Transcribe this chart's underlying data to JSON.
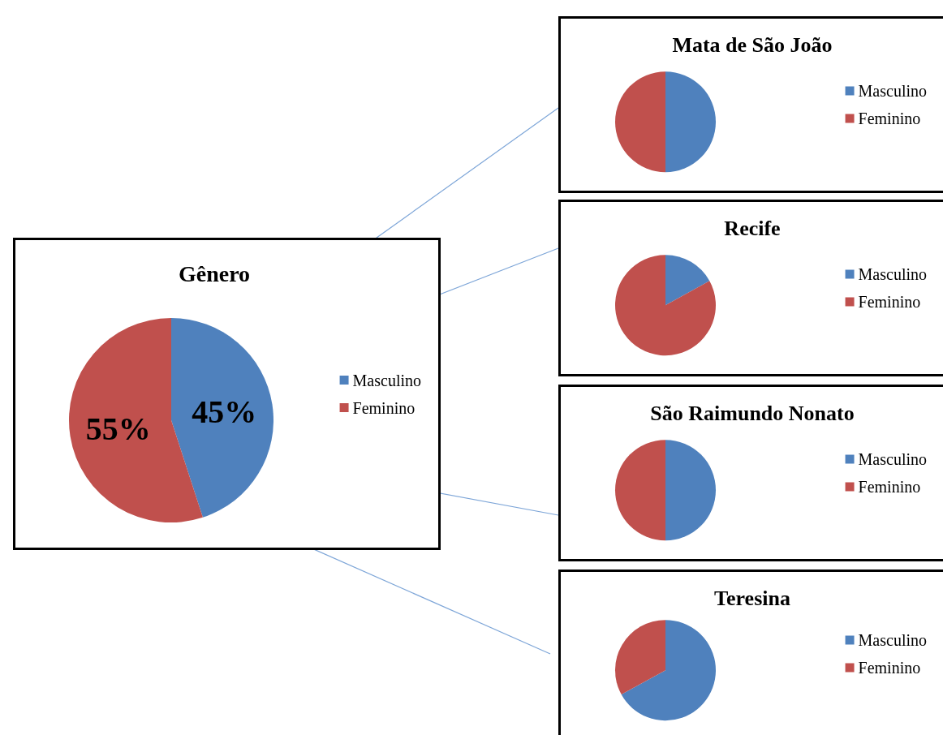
{
  "chart_data": [
    {
      "type": "pie",
      "title": "Gênero",
      "categories": [
        "Masculino",
        "Feminino"
      ],
      "values": [
        45,
        55
      ],
      "colors": [
        "#4f81bd",
        "#c0504d"
      ],
      "legend": "right",
      "value_labels": [
        "45%",
        "55%"
      ]
    },
    {
      "type": "pie",
      "title": "Mata de São João",
      "categories": [
        "Masculino",
        "Feminino"
      ],
      "values": [
        50,
        50
      ],
      "colors": [
        "#4f81bd",
        "#c0504d"
      ],
      "legend": "right"
    },
    {
      "type": "pie",
      "title": "Recife",
      "categories": [
        "Masculino",
        "Feminino"
      ],
      "values": [
        17,
        83
      ],
      "colors": [
        "#4f81bd",
        "#c0504d"
      ],
      "legend": "right"
    },
    {
      "type": "pie",
      "title": "São Raimundo Nonato",
      "categories": [
        "Masculino",
        "Feminino"
      ],
      "values": [
        50,
        50
      ],
      "colors": [
        "#4f81bd",
        "#c0504d"
      ],
      "legend": "right"
    },
    {
      "type": "pie",
      "title": "Teresina",
      "categories": [
        "Masculino",
        "Feminino"
      ],
      "values": [
        67,
        33
      ],
      "colors": [
        "#4f81bd",
        "#c0504d"
      ],
      "legend": "right"
    }
  ]
}
